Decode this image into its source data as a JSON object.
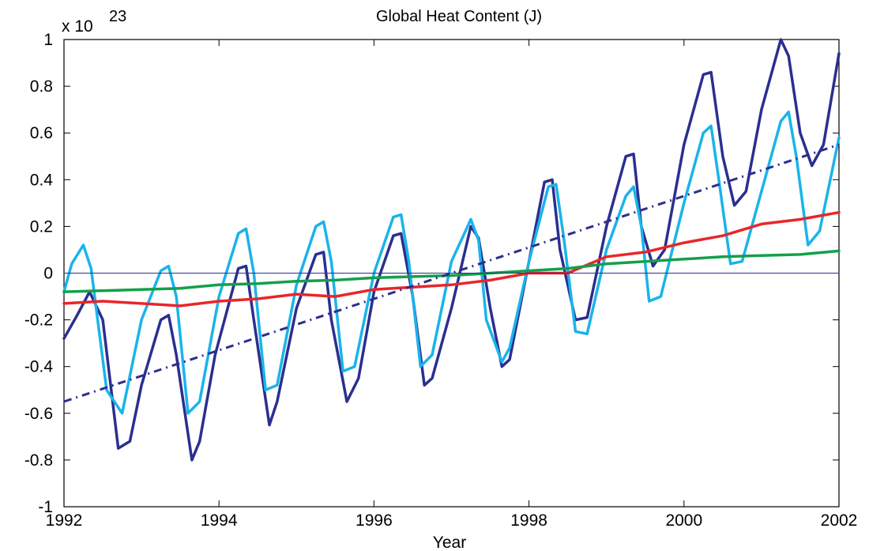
{
  "chart_data": {
    "type": "line",
    "title": "Global Heat Content (J)",
    "xlabel": "Year",
    "ylabel": "",
    "y_multiplier_base": "x 10",
    "y_multiplier_exp": "23",
    "xlim": [
      1992,
      2002
    ],
    "ylim": [
      -1,
      1
    ],
    "grid": false,
    "xticks": [
      1992,
      1994,
      1996,
      1998,
      2000,
      2002
    ],
    "yticks": [
      -1,
      -0.8,
      -0.6,
      -0.4,
      -0.2,
      0,
      0.2,
      0.4,
      0.6,
      0.8,
      1
    ],
    "xtick_labels": [
      "1992",
      "1994",
      "1996",
      "1998",
      "2000",
      "2002"
    ],
    "ytick_labels": [
      "-1",
      "-0.8",
      "-0.6",
      "-0.4",
      "-0.2",
      "0",
      "0.2",
      "0.4",
      "0.6",
      "0.8",
      "1"
    ],
    "series": [
      {
        "color": "#2b2f8f",
        "style": "solid",
        "x": [
          1992.0,
          1992.17,
          1992.33,
          1992.5,
          1992.7,
          1992.85,
          1993.0,
          1993.25,
          1993.35,
          1993.45,
          1993.65,
          1993.75,
          1993.95,
          1994.25,
          1994.35,
          1994.45,
          1994.65,
          1994.75,
          1995.0,
          1995.25,
          1995.35,
          1995.45,
          1995.65,
          1995.8,
          1996.0,
          1996.25,
          1996.35,
          1996.5,
          1996.65,
          1996.75,
          1997.0,
          1997.25,
          1997.35,
          1997.5,
          1997.65,
          1997.75,
          1998.0,
          1998.2,
          1998.3,
          1998.4,
          1998.6,
          1998.75,
          1999.0,
          1999.25,
          1999.35,
          1999.45,
          1999.6,
          1999.75,
          2000.0,
          2000.25,
          2000.35,
          2000.5,
          2000.65,
          2000.8,
          2001.0,
          2001.25,
          2001.35,
          2001.5,
          2001.65,
          2001.8,
          2002.0
        ],
        "y": [
          -0.28,
          -0.18,
          -0.08,
          -0.2,
          -0.75,
          -0.72,
          -0.48,
          -0.2,
          -0.18,
          -0.35,
          -0.8,
          -0.72,
          -0.35,
          0.02,
          0.03,
          -0.2,
          -0.65,
          -0.55,
          -0.15,
          0.08,
          0.09,
          -0.2,
          -0.55,
          -0.45,
          -0.08,
          0.16,
          0.17,
          -0.1,
          -0.48,
          -0.45,
          -0.15,
          0.2,
          0.15,
          -0.15,
          -0.4,
          -0.37,
          0.05,
          0.39,
          0.4,
          0.1,
          -0.2,
          -0.19,
          0.2,
          0.5,
          0.51,
          0.2,
          0.03,
          0.1,
          0.55,
          0.85,
          0.86,
          0.5,
          0.29,
          0.35,
          0.7,
          1.0,
          0.93,
          0.6,
          0.46,
          0.55,
          0.94
        ]
      },
      {
        "color": "#1ab4ea",
        "style": "solid",
        "x": [
          1992.0,
          1992.1,
          1992.25,
          1992.35,
          1992.55,
          1992.75,
          1993.0,
          1993.25,
          1993.35,
          1993.45,
          1993.6,
          1993.75,
          1994.0,
          1994.25,
          1994.35,
          1994.45,
          1994.6,
          1994.75,
          1995.0,
          1995.25,
          1995.35,
          1995.45,
          1995.6,
          1995.75,
          1996.0,
          1996.25,
          1996.35,
          1996.45,
          1996.6,
          1996.75,
          1997.0,
          1997.25,
          1997.35,
          1997.45,
          1997.65,
          1997.75,
          1998.0,
          1998.25,
          1998.35,
          1998.45,
          1998.6,
          1998.75,
          1999.0,
          1999.25,
          1999.35,
          1999.45,
          1999.55,
          1999.7,
          2000.0,
          2000.25,
          2000.35,
          2000.45,
          2000.6,
          2000.75,
          2001.0,
          2001.25,
          2001.35,
          2001.45,
          2001.6,
          2001.75,
          2002.0
        ],
        "y": [
          -0.08,
          0.04,
          0.12,
          0.02,
          -0.5,
          -0.6,
          -0.2,
          0.01,
          0.03,
          -0.1,
          -0.6,
          -0.55,
          -0.1,
          0.17,
          0.19,
          0.0,
          -0.5,
          -0.48,
          -0.05,
          0.2,
          0.22,
          0.05,
          -0.42,
          -0.4,
          0.0,
          0.24,
          0.25,
          0.05,
          -0.4,
          -0.35,
          0.05,
          0.23,
          0.14,
          -0.2,
          -0.38,
          -0.32,
          0.05,
          0.37,
          0.38,
          0.15,
          -0.25,
          -0.26,
          0.1,
          0.33,
          0.37,
          0.2,
          -0.12,
          -0.1,
          0.3,
          0.6,
          0.63,
          0.4,
          0.04,
          0.05,
          0.35,
          0.65,
          0.69,
          0.5,
          0.12,
          0.18,
          0.58
        ]
      },
      {
        "color": "#e8262a",
        "style": "solid",
        "x": [
          1992.0,
          1992.5,
          1993.0,
          1993.5,
          1994.0,
          1994.5,
          1995.0,
          1995.5,
          1996.0,
          1996.5,
          1997.0,
          1997.5,
          1998.0,
          1998.5,
          1999.0,
          1999.5,
          2000.0,
          2000.5,
          2001.0,
          2001.5,
          2002.0
        ],
        "y": [
          -0.13,
          -0.12,
          -0.13,
          -0.14,
          -0.12,
          -0.11,
          -0.09,
          -0.1,
          -0.07,
          -0.06,
          -0.05,
          -0.03,
          0.0,
          0.0,
          0.07,
          0.09,
          0.13,
          0.16,
          0.21,
          0.23,
          0.26
        ]
      },
      {
        "color": "#13a04a",
        "style": "solid",
        "x": [
          1992.0,
          1992.5,
          1993.0,
          1993.5,
          1994.0,
          1994.5,
          1995.0,
          1995.5,
          1996.0,
          1996.5,
          1997.0,
          1997.5,
          1998.0,
          1998.5,
          1999.0,
          1999.5,
          2000.0,
          2000.5,
          2001.0,
          2001.5,
          2002.0
        ],
        "y": [
          -0.08,
          -0.075,
          -0.07,
          -0.065,
          -0.05,
          -0.045,
          -0.035,
          -0.03,
          -0.02,
          -0.015,
          -0.01,
          0.0,
          0.01,
          0.02,
          0.04,
          0.05,
          0.06,
          0.07,
          0.075,
          0.08,
          0.095
        ]
      },
      {
        "color": "#2b2f8f",
        "style": "dashdot",
        "x": [
          1992.0,
          2002.0
        ],
        "y": [
          -0.55,
          0.55
        ]
      },
      {
        "color": "#2b2f8f",
        "style": "zero-line",
        "x": [
          1992.0,
          2002.0
        ],
        "y": [
          0,
          0
        ]
      }
    ]
  }
}
